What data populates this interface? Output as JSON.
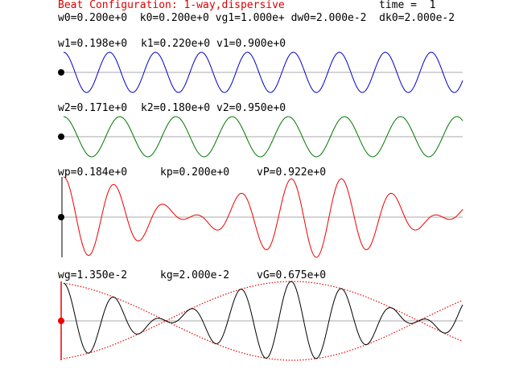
{
  "header": {
    "title": "Beat Configuration: 1-way,dispersive",
    "time_label": "time =  1",
    "params": "w0=0.200e+0  k0=0.200e+0 vg1=1.000e+ dw0=2.000e-2  dk0=2.000e-2"
  },
  "wave1": {
    "label_w": "w1=0.198e+0",
    "label_k": "k1=0.220e+0",
    "label_v": "v1=0.900e+0",
    "color": "#0000cc",
    "k": 0.22
  },
  "wave2": {
    "label_w": "w2=0.171e+0",
    "label_k": "k2=0.180e+0",
    "label_v": "v2=0.950e+0",
    "color": "#007700",
    "k": 0.18
  },
  "phase": {
    "label_w": "wp=0.184e+0",
    "label_k": "kp=0.200e+0",
    "label_v": "vP=0.922e+0",
    "color": "#ee0000"
  },
  "group": {
    "label_w": "wg=1.350e-2",
    "label_k": "kg=2.000e-2",
    "label_v": "vG=0.675e+0",
    "wave_color": "#000000",
    "envelope_color": "#ee0000"
  },
  "colors": {
    "title": "#dd0000",
    "axis": "#aaaaaa",
    "text": "#000000"
  }
}
